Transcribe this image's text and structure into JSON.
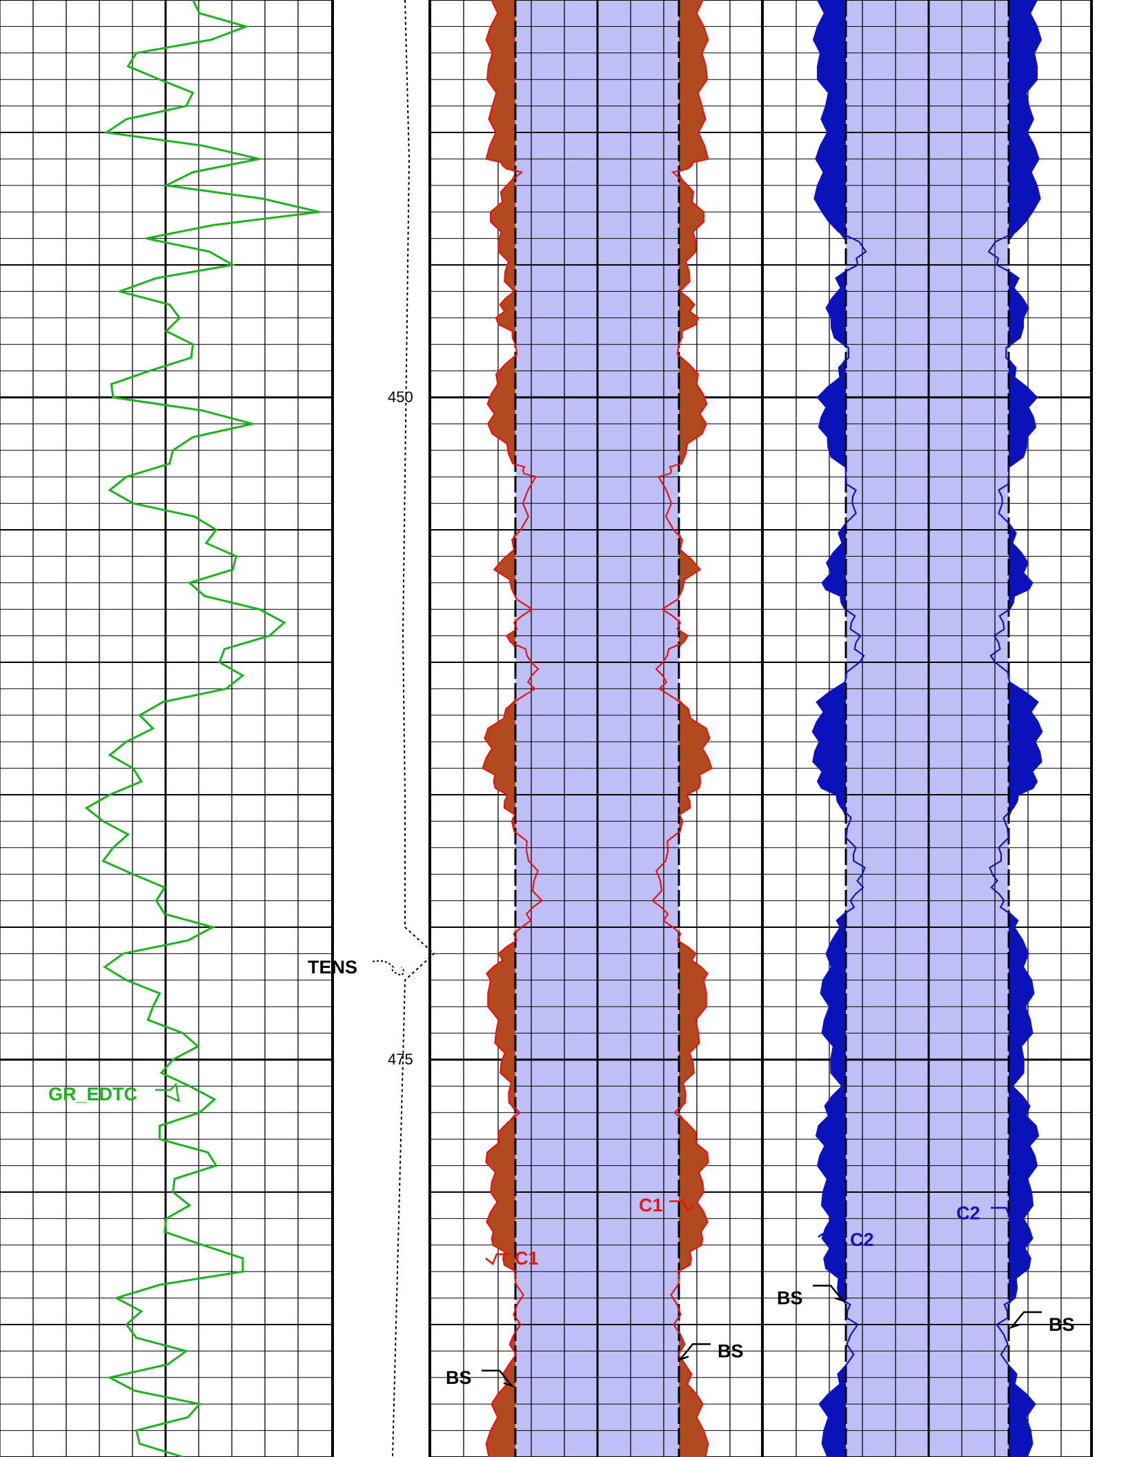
{
  "chart_data": {
    "type": "line",
    "title": "",
    "depth_axis": {
      "unit": "",
      "visible_range": [
        435,
        490
      ],
      "tick_labels": [
        "450",
        "475"
      ]
    },
    "tracks": [
      {
        "name": "track-1-gamma-ray",
        "series": [
          {
            "name": "GR_EDTC",
            "color": "#1ab51a",
            "depth": [
              435,
              436,
              437,
              438,
              439,
              440,
              441,
              442,
              443,
              444,
              445,
              446,
              447,
              448,
              449,
              450,
              451,
              452,
              453,
              454,
              455,
              456,
              457,
              458,
              459,
              460,
              461,
              462,
              463,
              464,
              465,
              466,
              467,
              468,
              469,
              470,
              471,
              472,
              473,
              474,
              475,
              476,
              477,
              478,
              479,
              480,
              481,
              482,
              483,
              484,
              485,
              486,
              487,
              488,
              489,
              490
            ],
            "values": [
              0.58,
              0.74,
              0.41,
              0.48,
              0.56,
              0.32,
              0.78,
              0.5,
              0.96,
              0.44,
              0.7,
              0.36,
              0.54,
              0.58,
              0.45,
              0.34,
              0.76,
              0.52,
              0.38,
              0.4,
              0.65,
              0.71,
              0.57,
              0.78,
              0.81,
              0.66,
              0.68,
              0.42,
              0.38,
              0.4,
              0.33,
              0.31,
              0.34,
              0.4,
              0.47,
              0.64,
              0.37,
              0.38,
              0.46,
              0.55,
              0.52,
              0.57,
              0.6,
              0.48,
              0.65,
              0.52,
              0.5,
              0.61,
              0.73,
              0.35,
              0.38,
              0.56,
              0.33,
              0.6,
              0.41,
              0.55
            ],
            "label_depth": 476.3
          },
          {
            "name": "TENS",
            "color": "#000000",
            "depth": [
              435,
              441,
              447,
              453,
              459,
              465,
              470,
              471,
              472,
              478,
              484,
              490
            ],
            "values": [
              0.6,
              0.62,
              0.61,
              0.6,
              0.59,
              0.6,
              0.6,
              0.74,
              0.6,
              0.58,
              0.56,
              0.54
            ],
            "label_depth": 471.3
          }
        ]
      },
      {
        "name": "track-2-caliper-c1",
        "series": [
          {
            "name": "C1",
            "color": "#ee1111",
            "fill": "#b14a1e",
            "depth": [
              435,
              437,
              439,
              441,
              441.5,
              443,
              444.5,
              446,
              447,
              448,
              449.5,
              451,
              452.5,
              453,
              455,
              456.5,
              458,
              459,
              460,
              461,
              462.5,
              464,
              465,
              466,
              467.5,
              469,
              470,
              471,
              472,
              474,
              475.5,
              477,
              478.5,
              480,
              481.5,
              482.5,
              483.5,
              485,
              486.5,
              488,
              490
            ],
            "values": [
              0.72,
              0.8,
              0.74,
              0.78,
              0.47,
              0.76,
              0.64,
              0.55,
              0.7,
              0.45,
              0.74,
              0.79,
              0.48,
              0.31,
              0.42,
              0.69,
              0.35,
              0.58,
              0.27,
              0.32,
              0.79,
              0.82,
              0.63,
              0.52,
              0.3,
              0.24,
              0.41,
              0.64,
              0.82,
              0.7,
              0.62,
              0.49,
              0.8,
              0.73,
              0.79,
              0.62,
              0.44,
              0.48,
              0.55,
              0.72,
              0.8
            ],
            "label_depths": [
              482.5,
              480.5
            ]
          },
          {
            "name": "BS",
            "color": "#000000",
            "depth": [
              435,
              490
            ],
            "values": [
              0.5,
              0.5
            ],
            "label_depths": [
              487.0,
              486.0
            ]
          }
        ]
      },
      {
        "name": "track-3-caliper-c2",
        "series": [
          {
            "name": "C2",
            "color": "#1111cc",
            "fill": "#0a12b9",
            "depth": [
              435,
              437,
              439,
              441,
              443,
              444.5,
              445.5,
              447,
              448.5,
              450,
              451.5,
              453,
              454,
              455.5,
              457,
              458,
              459,
              460,
              461.5,
              463,
              464.5,
              465.5,
              467,
              468,
              469,
              470,
              472,
              474,
              476,
              477.5,
              479,
              481,
              482.5,
              484,
              485,
              486.5,
              488,
              490
            ],
            "values": [
              0.76,
              0.82,
              0.7,
              0.78,
              0.8,
              0.26,
              0.56,
              0.7,
              0.45,
              0.76,
              0.74,
              0.48,
              0.38,
              0.58,
              0.74,
              0.46,
              0.38,
              0.33,
              0.77,
              0.83,
              0.79,
              0.5,
              0.43,
              0.3,
              0.4,
              0.6,
              0.73,
              0.71,
              0.58,
              0.78,
              0.76,
              0.7,
              0.72,
              0.52,
              0.41,
              0.47,
              0.74,
              0.7
            ],
            "label_depths": [
              481.8,
              480.8
            ]
          },
          {
            "name": "BS",
            "color": "#000000",
            "depth": [
              435,
              490
            ],
            "values": [
              0.5,
              0.5
            ],
            "label_depths": [
              484.0,
              485.0
            ]
          }
        ]
      }
    ],
    "grid": true,
    "colors": {
      "hole_fill": "#bfbff8",
      "grid": "#000000",
      "gr": "#1ab51a",
      "c1": "#ee1111",
      "c1_fill": "#b14a1e",
      "c2": "#1111cc",
      "c2_fill": "#0a12b9"
    }
  }
}
